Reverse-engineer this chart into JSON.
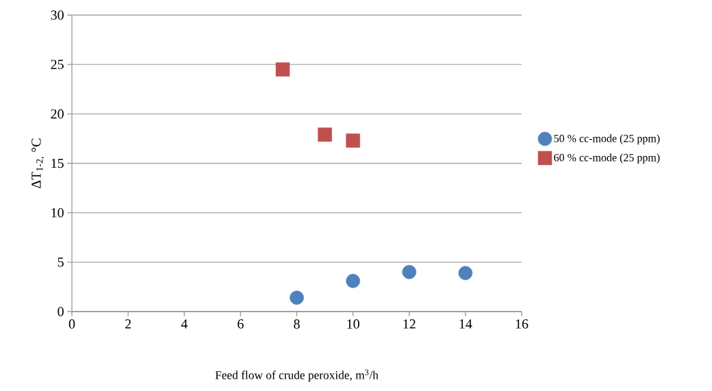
{
  "chart_data": {
    "type": "scatter",
    "xlabel": "Feed flow of crude peroxide, m$^{3}$/h",
    "ylabel": "ΔT$_{1-2,}$ °C",
    "xlim": [
      0,
      16
    ],
    "xticks": [
      0,
      2,
      4,
      6,
      8,
      10,
      12,
      14,
      16
    ],
    "ylim": [
      0,
      30
    ],
    "yticks": [
      0,
      5,
      10,
      15,
      20,
      25,
      30
    ],
    "grid": "y",
    "legend": "right",
    "series": [
      {
        "name": "50 % cc-mode (25 ppm)",
        "color": "#4f81bd",
        "marker": "circle",
        "x": [
          8,
          10,
          12,
          14
        ],
        "values": [
          1.4,
          3.1,
          4.0,
          3.9
        ]
      },
      {
        "name": "60 % cc-mode (25 ppm)",
        "color": "#c0504d",
        "marker": "square",
        "x": [
          7.5,
          9,
          10
        ],
        "values": [
          24.5,
          17.9,
          17.3
        ]
      }
    ]
  }
}
